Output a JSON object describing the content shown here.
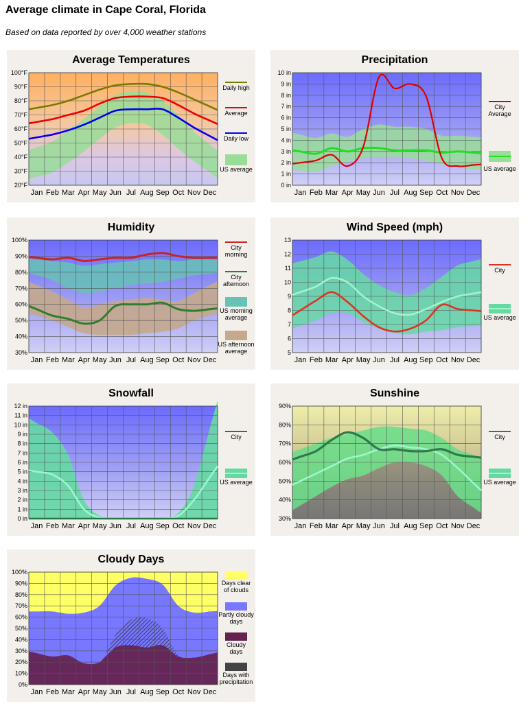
{
  "page": {
    "title": "Average climate in Cape Coral, Florida",
    "subtitle": "Based on data reported by over 4,000 weather stations"
  },
  "colors": {
    "panel_bg": "#f3f0ec",
    "daily_high": "#7a7a00",
    "average": "#ee0000",
    "daily_low": "#0000ee",
    "us_green": "#99dd99",
    "precip_city": "#dd0000",
    "precip_us": "#22dd22",
    "humid_morning": "#cc2222",
    "humid_afternoon": "#2e7d2e",
    "humid_us_morning": "#66c2b5",
    "humid_us_afternoon": "#c4a98c",
    "wind_city": "#dd3322",
    "teal_band": "#66d9a3",
    "teal_line": "#9ff5cc",
    "snow_city": "#227744",
    "sun_city": "#2e7a4a",
    "cloud_clear": "#ffff66",
    "cloud_partly": "#7777ff",
    "cloud_cloudy": "#66224f",
    "cloud_precip": "#444444"
  },
  "chart_data": [
    {
      "id": "temp",
      "type": "line",
      "title": "Average Temperatures",
      "x": [
        "Jan",
        "Feb",
        "Mar",
        "Apr",
        "May",
        "Jun",
        "Jul",
        "Aug",
        "Sep",
        "Oct",
        "Nov",
        "Dec"
      ],
      "ylim": [
        20,
        100
      ],
      "yticks": [
        20,
        30,
        40,
        50,
        60,
        70,
        80,
        90,
        100
      ],
      "ytick_labels": [
        "20°F",
        "30°F",
        "40°F",
        "50°F",
        "60°F",
        "70°F",
        "80°F",
        "90°F",
        "100°F"
      ],
      "grid": true,
      "bands": [
        {
          "name": "US average",
          "lower": [
            26,
            29,
            36,
            44,
            53,
            61,
            64,
            63,
            56,
            46,
            37,
            29
          ],
          "upper": [
            47,
            51,
            59,
            67,
            76,
            84,
            87,
            86,
            80,
            70,
            58,
            49
          ]
        }
      ],
      "series": [
        {
          "name": "Daily high",
          "values": [
            75,
            77,
            80,
            84,
            88,
            91,
            92,
            92,
            90,
            86,
            81,
            76
          ]
        },
        {
          "name": "Average",
          "values": [
            65,
            67,
            70,
            73,
            78,
            82,
            83,
            83,
            82,
            77,
            71,
            66
          ]
        },
        {
          "name": "Daily low",
          "values": [
            54,
            56,
            59,
            63,
            68,
            73,
            74,
            74,
            74,
            68,
            61,
            55
          ]
        }
      ],
      "legend": [
        {
          "label": "Daily high"
        },
        {
          "label": "Average"
        },
        {
          "label": "Daily low"
        },
        {
          "label": "US average"
        }
      ]
    },
    {
      "id": "precip",
      "type": "line",
      "title": "Precipitation",
      "x": [
        "Jan",
        "Feb",
        "Mar",
        "Apr",
        "May",
        "Jun",
        "Jul",
        "Aug",
        "Sep",
        "Oct",
        "Nov",
        "Dec"
      ],
      "ylim": [
        0,
        10
      ],
      "yticks": [
        0,
        1,
        2,
        3,
        4,
        5,
        6,
        7,
        8,
        9,
        10
      ],
      "ytick_labels": [
        "0 in",
        "1 in",
        "2 in",
        "3 in",
        "4 in",
        "5 in",
        "6 in",
        "7 in",
        "8 in",
        "9 in",
        "10 in"
      ],
      "grid": true,
      "bands": [
        {
          "name": "US average",
          "lower": [
            1.3,
            1.2,
            1.7,
            2.1,
            2.4,
            2.5,
            2.5,
            2.4,
            2.2,
            1.9,
            1.6,
            1.4
          ],
          "upper": [
            4.5,
            4.2,
            4.6,
            4.3,
            5.0,
            5.4,
            5.2,
            5.2,
            5.0,
            4.4,
            4.4,
            4.3
          ]
        }
      ],
      "series": [
        {
          "name": "City Average",
          "values": [
            2.0,
            2.2,
            2.7,
            1.7,
            3.4,
            9.6,
            8.6,
            9.0,
            7.9,
            2.4,
            1.7,
            1.8
          ]
        },
        {
          "name": "US average",
          "values": [
            3.0,
            2.8,
            3.3,
            3.0,
            3.3,
            3.3,
            3.1,
            3.1,
            3.1,
            2.9,
            3.0,
            2.9
          ]
        }
      ],
      "legend": [
        {
          "label": "City Average"
        },
        {
          "label": "US average"
        }
      ]
    },
    {
      "id": "humid",
      "type": "line",
      "title": "Humidity",
      "x": [
        "Jan",
        "Feb",
        "Mar",
        "Apr",
        "May",
        "Jun",
        "Jul",
        "Aug",
        "Sep",
        "Oct",
        "Nov",
        "Dec"
      ],
      "ylim": [
        30,
        100
      ],
      "yticks": [
        30,
        40,
        50,
        60,
        70,
        80,
        90,
        100
      ],
      "ytick_labels": [
        "30%",
        "40%",
        "50%",
        "60%",
        "70%",
        "80%",
        "90%",
        "100%"
      ],
      "grid": true,
      "bands": [
        {
          "name": "US morning average",
          "lower": [
            78,
            75,
            70,
            67,
            68,
            70,
            72,
            73,
            74,
            76,
            78,
            79
          ],
          "upper": [
            88,
            87,
            86,
            84,
            85,
            86,
            87,
            88,
            88,
            87,
            88,
            88
          ]
        },
        {
          "name": "US afternoon average",
          "lower": [
            53,
            50,
            46,
            42,
            41,
            41,
            41,
            42,
            43,
            45,
            50,
            53
          ],
          "upper": [
            72,
            68,
            63,
            58,
            60,
            62,
            63,
            64,
            63,
            62,
            67,
            72
          ]
        }
      ],
      "series": [
        {
          "name": "City morning",
          "values": [
            89,
            88,
            89,
            87,
            88,
            89,
            89,
            91,
            92,
            90,
            89,
            89
          ]
        },
        {
          "name": "City afternoon",
          "values": [
            57,
            53,
            51,
            48,
            50,
            59,
            60,
            60,
            61,
            57,
            56,
            57
          ]
        }
      ],
      "legend": [
        {
          "label": "City morning"
        },
        {
          "label": "City afternoon"
        },
        {
          "label": "US morning average"
        },
        {
          "label": "US afternoon average"
        }
      ]
    },
    {
      "id": "wind",
      "type": "line",
      "title": "Wind Speed (mph)",
      "x": [
        "Jan",
        "Feb",
        "Mar",
        "Apr",
        "May",
        "Jun",
        "Jul",
        "Aug",
        "Sep",
        "Oct",
        "Nov",
        "Dec"
      ],
      "ylim": [
        5,
        13
      ],
      "yticks": [
        5,
        6,
        7,
        8,
        9,
        10,
        11,
        12,
        13
      ],
      "ytick_labels": [
        "5",
        "6",
        "7",
        "8",
        "9",
        "10",
        "11",
        "12",
        "13"
      ],
      "grid": true,
      "bands": [
        {
          "name": "US average",
          "lower": [
            6.9,
            7.3,
            7.8,
            7.8,
            7.2,
            6.7,
            6.4,
            6.3,
            6.5,
            6.6,
            6.8,
            6.9
          ],
          "upper": [
            11.5,
            11.8,
            12.2,
            11.6,
            10.6,
            9.8,
            9.3,
            9.1,
            9.6,
            10.4,
            11.2,
            11.5
          ]
        }
      ],
      "series": [
        {
          "name": "City",
          "values": [
            8.0,
            8.7,
            9.3,
            8.6,
            7.6,
            6.8,
            6.5,
            6.7,
            7.3,
            8.4,
            8.1,
            8.0
          ]
        },
        {
          "name": "US average",
          "values": [
            9.3,
            9.7,
            10.3,
            10.0,
            9.0,
            8.3,
            7.8,
            7.7,
            8.1,
            8.6,
            9.0,
            9.2
          ]
        }
      ],
      "legend": [
        {
          "label": "City"
        },
        {
          "label": "US average"
        }
      ]
    },
    {
      "id": "snow",
      "type": "area",
      "title": "Snowfall",
      "x": [
        "Jan",
        "Feb",
        "Mar",
        "Apr",
        "May",
        "Jun",
        "Jul",
        "Aug",
        "Sep",
        "Oct",
        "Nov",
        "Dec"
      ],
      "ylim": [
        0,
        12
      ],
      "yticks": [
        0,
        1,
        2,
        3,
        4,
        5,
        6,
        7,
        8,
        9,
        10,
        11,
        12
      ],
      "ytick_labels": [
        "0 in",
        "1 in",
        "2 in",
        "3 in",
        "4 in",
        "5 in",
        "6 in",
        "7 in",
        "8 in",
        "9 in",
        "10 in",
        "11 in",
        "12 in"
      ],
      "grid": true,
      "bands": [
        {
          "name": "US average",
          "lower": [
            0,
            0,
            0,
            0,
            0,
            0,
            0,
            0,
            0,
            0,
            0,
            0
          ],
          "upper": [
            10.2,
            9.2,
            6.8,
            2.0,
            0.3,
            0,
            0,
            0,
            0,
            0.6,
            3.5,
            9.6
          ]
        }
      ],
      "series": [
        {
          "name": "City",
          "values": [
            0,
            0,
            0,
            0,
            0,
            0,
            0,
            0,
            0,
            0,
            0,
            0
          ]
        },
        {
          "name": "US average",
          "values": [
            5.0,
            4.7,
            3.5,
            1.0,
            0.1,
            0,
            0,
            0,
            0,
            0.3,
            2.0,
            4.4
          ]
        }
      ],
      "legend": [
        {
          "label": "City"
        },
        {
          "label": "US average"
        }
      ]
    },
    {
      "id": "sun",
      "type": "line",
      "title": "Sunshine",
      "x": [
        "Jan",
        "Feb",
        "Mar",
        "Apr",
        "May",
        "Jun",
        "Jul",
        "Aug",
        "Sep",
        "Oct",
        "Nov",
        "Dec"
      ],
      "ylim": [
        30,
        90
      ],
      "yticks": [
        30,
        40,
        50,
        60,
        70,
        80,
        90
      ],
      "ytick_labels": [
        "30%",
        "40%",
        "50%",
        "60%",
        "70%",
        "80%",
        "90%"
      ],
      "grid": true,
      "bands": [
        {
          "name": "US average",
          "lower": [
            37,
            42,
            47,
            51,
            53,
            57,
            60,
            60,
            58,
            53,
            42,
            36
          ],
          "upper": [
            67,
            70,
            73,
            75,
            77,
            79,
            79,
            78,
            77,
            73,
            67,
            64
          ]
        }
      ],
      "series": [
        {
          "name": "City",
          "values": [
            63,
            66,
            72,
            76,
            73,
            67,
            67,
            66,
            66,
            67,
            64,
            63
          ]
        },
        {
          "name": "US average",
          "values": [
            50,
            54,
            58,
            62,
            64,
            67,
            69,
            68,
            67,
            64,
            57,
            49
          ]
        }
      ],
      "legend": [
        {
          "label": "City"
        },
        {
          "label": "US average"
        }
      ]
    },
    {
      "id": "cloud",
      "type": "area",
      "title": "Cloudy Days",
      "x": [
        "Jan",
        "Feb",
        "Mar",
        "Apr",
        "May",
        "Jun",
        "Jul",
        "Aug",
        "Sep",
        "Oct",
        "Nov",
        "Dec"
      ],
      "ylim": [
        0,
        100
      ],
      "yticks": [
        0,
        10,
        20,
        30,
        40,
        50,
        60,
        70,
        80,
        90,
        100
      ],
      "ytick_labels": [
        "0%",
        "10%",
        "20%",
        "30%",
        "40%",
        "50%",
        "60%",
        "70%",
        "80%",
        "90%",
        "100%"
      ],
      "grid": true,
      "partly_top": [
        65,
        65,
        63,
        64,
        70,
        88,
        95,
        94,
        89,
        70,
        64,
        65
      ],
      "cloudy_top": [
        28,
        25,
        26,
        19,
        20,
        33,
        35,
        33,
        35,
        25,
        24,
        27
      ],
      "precip_top": [
        23,
        22,
        21,
        17,
        19,
        44,
        58,
        59,
        50,
        26,
        22,
        21
      ],
      "legend": [
        {
          "label": "Days clear of clouds"
        },
        {
          "label": "Partly cloudy days"
        },
        {
          "label": "Cloudy days"
        },
        {
          "label": "Days with precipitation"
        }
      ]
    }
  ]
}
